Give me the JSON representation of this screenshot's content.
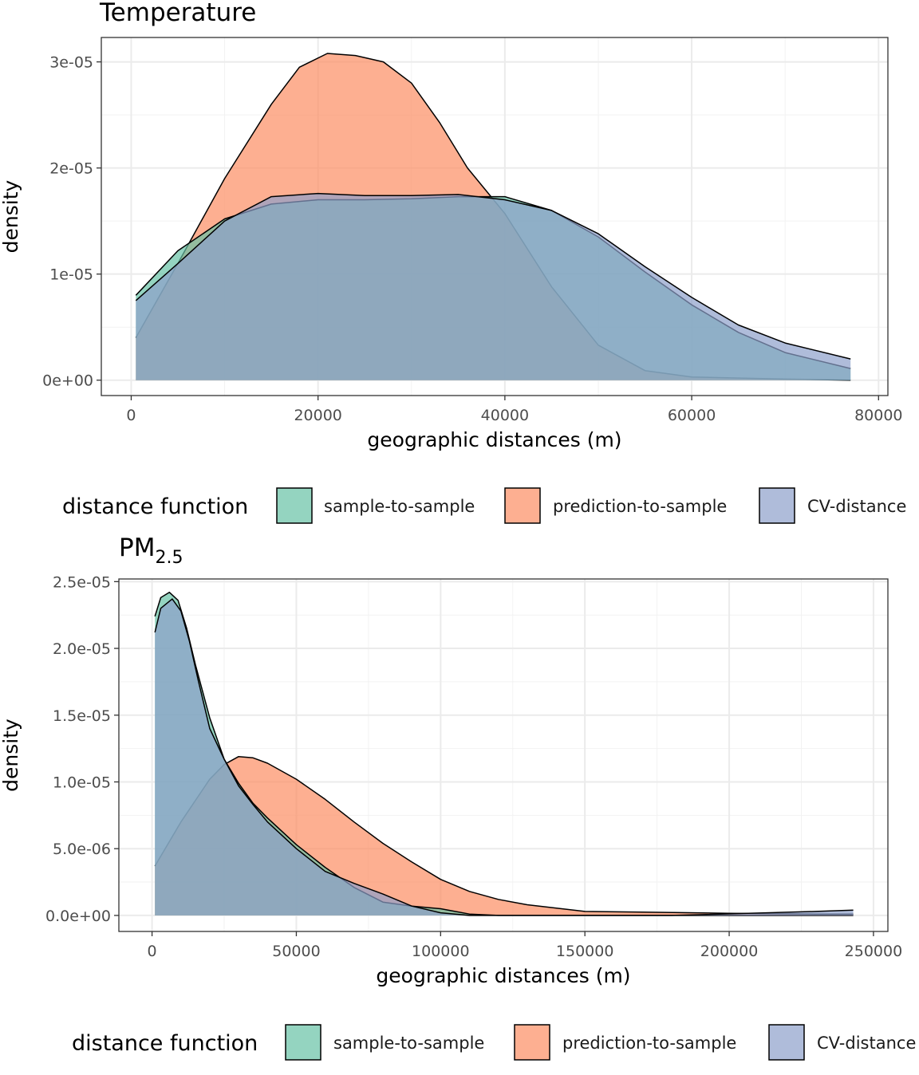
{
  "colors": {
    "sample-to-sample": "#66c2a5",
    "prediction-to-sample": "#fc8d62",
    "CV-distances": "#8da0cb"
  },
  "chart_data": [
    {
      "type": "area",
      "title": "Temperature",
      "title_sub": "",
      "xlabel": "geographic distances (m)",
      "ylabel": "density",
      "xlim": [
        -3200,
        81000
      ],
      "ylim": [
        -1.45e-06,
        3.23e-05
      ],
      "x_ticks": [
        0,
        20000,
        40000,
        60000,
        80000
      ],
      "x_tick_labels": [
        "0",
        "20000",
        "40000",
        "60000",
        "80000"
      ],
      "y_ticks": [
        0,
        1e-05,
        2e-05,
        3e-05
      ],
      "y_tick_labels": [
        "0e+00",
        "1e-05",
        "2e-05",
        "3e-05"
      ],
      "grid": true,
      "legend": {
        "position": "bottom",
        "title": "distance function",
        "entries": [
          "sample-to-sample",
          "prediction-to-sample",
          "CV-distance"
        ]
      },
      "series": [
        {
          "name": "sample-to-sample",
          "x": [
            500,
            5000,
            10000,
            15000,
            20000,
            25000,
            30000,
            35000,
            40000,
            45000,
            50000,
            55000,
            60000,
            65000,
            70000,
            77000
          ],
          "y": [
            8e-06,
            1.22e-05,
            1.52e-05,
            1.66e-05,
            1.7e-05,
            1.7e-05,
            1.71e-05,
            1.73e-05,
            1.73e-05,
            1.6e-05,
            1.35e-05,
            1.02e-05,
            7.1e-06,
            4.5e-06,
            2.6e-06,
            1.1e-06
          ]
        },
        {
          "name": "prediction-to-sample",
          "x": [
            500,
            5000,
            10000,
            15000,
            18000,
            21000,
            24000,
            27000,
            30000,
            33000,
            36000,
            40000,
            45000,
            50000,
            55000,
            60000,
            70000,
            77000
          ],
          "y": [
            4e-06,
            1.1e-05,
            1.9e-05,
            2.6e-05,
            2.95e-05,
            3.08e-05,
            3.06e-05,
            3e-05,
            2.8e-05,
            2.43e-05,
            2e-05,
            1.57e-05,
            8.8e-06,
            3.3e-06,
            9e-07,
            3e-07,
            1e-07,
            0
          ]
        },
        {
          "name": "CV-distances",
          "x": [
            500,
            5000,
            10000,
            15000,
            20000,
            25000,
            30000,
            35000,
            40000,
            45000,
            50000,
            55000,
            60000,
            65000,
            70000,
            77000
          ],
          "y": [
            7.5e-06,
            1.1e-05,
            1.5e-05,
            1.73e-05,
            1.76e-05,
            1.74e-05,
            1.74e-05,
            1.75e-05,
            1.7e-05,
            1.6e-05,
            1.38e-05,
            1.07e-05,
            7.8e-06,
            5.2e-06,
            3.5e-06,
            2e-06
          ]
        }
      ]
    },
    {
      "type": "area",
      "title": "PM",
      "title_sub": "2.5",
      "xlabel": "geographic distances (m)",
      "ylabel": "density",
      "xlim": [
        -11500,
        255000
      ],
      "ylim": [
        -1.2e-06,
        2.52e-05
      ],
      "x_ticks": [
        0,
        50000,
        100000,
        150000,
        200000,
        250000
      ],
      "x_tick_labels": [
        "0",
        "50000",
        "100000",
        "150000",
        "200000",
        "250000"
      ],
      "y_ticks": [
        0,
        5e-06,
        1e-05,
        1.5e-05,
        2e-05,
        2.5e-05
      ],
      "y_tick_labels": [
        "0.0e+00",
        "5.0e-06",
        "1.0e-05",
        "1.5e-05",
        "2.0e-05",
        "2.5e-05"
      ],
      "grid": true,
      "legend": {
        "position": "bottom",
        "title": "distance function",
        "entries": [
          "sample-to-sample",
          "prediction-to-sample",
          "CV-distance"
        ]
      },
      "series": [
        {
          "name": "sample-to-sample",
          "x": [
            1000,
            3000,
            6000,
            9000,
            12000,
            15000,
            20000,
            25000,
            30000,
            35000,
            40000,
            50000,
            60000,
            70000,
            80000,
            90000,
            100000,
            110000,
            120000,
            150000,
            200000,
            230000,
            243000
          ],
          "y": [
            2.24e-05,
            2.38e-05,
            2.42e-05,
            2.36e-05,
            2.15e-05,
            1.88e-05,
            1.48e-05,
            1.17e-05,
            9.9e-06,
            8.4e-06,
            7.3e-06,
            5.3e-06,
            3.6e-06,
            2.1e-06,
            1e-06,
            7e-07,
            5e-07,
            1e-07,
            0,
            0,
            0,
            0,
            0
          ]
        },
        {
          "name": "prediction-to-sample",
          "x": [
            1000,
            10000,
            20000,
            25000,
            30000,
            35000,
            40000,
            50000,
            60000,
            70000,
            80000,
            90000,
            100000,
            110000,
            120000,
            130000,
            150000,
            170000,
            200000,
            230000,
            243000
          ],
          "y": [
            3.7e-06,
            7e-06,
            1.02e-05,
            1.13e-05,
            1.19e-05,
            1.18e-05,
            1.14e-05,
            1.02e-05,
            8.7e-06,
            7e-06,
            5.4e-06,
            4e-06,
            2.7e-06,
            1.8e-06,
            1.2e-06,
            8e-07,
            3e-07,
            2.5e-07,
            1.6e-07,
            1e-07,
            1e-07
          ]
        },
        {
          "name": "CV-distances",
          "x": [
            1000,
            3000,
            7000,
            10000,
            13000,
            16000,
            20000,
            25000,
            30000,
            35000,
            40000,
            50000,
            60000,
            70000,
            80000,
            90000,
            100000,
            110000,
            130000,
            180000,
            230000,
            243000
          ],
          "y": [
            2.12e-05,
            2.3e-05,
            2.37e-05,
            2.28e-05,
            2.05e-05,
            1.76e-05,
            1.4e-05,
            1.17e-05,
            9.7e-06,
            8.3e-06,
            7e-06,
            5e-06,
            3.3e-06,
            2.4e-06,
            1.6e-06,
            7e-07,
            2e-07,
            0,
            0,
            0,
            3e-07,
            4e-07
          ]
        }
      ]
    }
  ]
}
